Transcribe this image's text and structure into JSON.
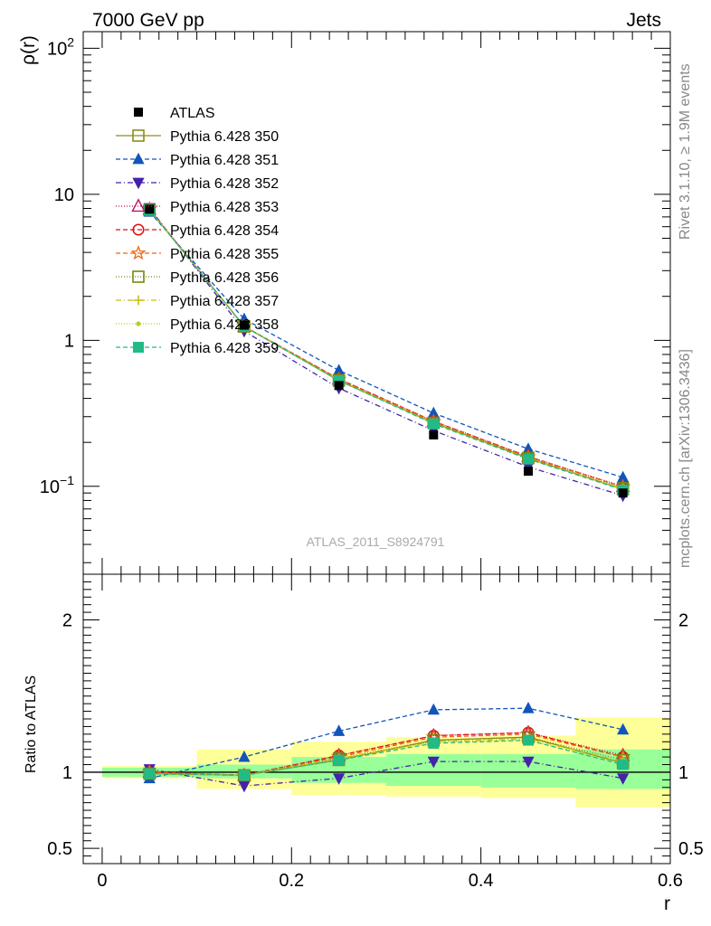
{
  "header": {
    "left": "7000 GeV pp",
    "right": "Jets"
  },
  "side": {
    "rivet": "Rivet 3.1.10, ≥ 1.9M events",
    "source": "mcplots.cern.ch [arXiv:1306.3436]"
  },
  "watermark": "ATLAS_2011_S8924791",
  "upper": {
    "ylabel": "ρ(r)"
  },
  "lower": {
    "ylabel": "Ratio to ATLAS"
  },
  "xlabel": "r",
  "colors": {
    "data": "#000000",
    "band_inner": "#99ff99",
    "band_outer": "#ffff99"
  },
  "chart_data": {
    "type": "line",
    "xlabel": "r",
    "ylabel_upper": "ρ(r)",
    "ylabel_lower": "Ratio to ATLAS",
    "x_range": [
      -0.02,
      0.6
    ],
    "x_ticks": [
      "0",
      "0.2",
      "0.4",
      "0.6"
    ],
    "upper_y_log": true,
    "upper_y_range": [
      0.025,
      130
    ],
    "upper_y_ticks": [
      {
        "value": 0.1,
        "label": "10",
        "exp": "−1"
      },
      {
        "value": 1,
        "label": "1",
        "exp": ""
      },
      {
        "value": 10,
        "label": "10",
        "exp": ""
      },
      {
        "value": 100,
        "label": "10",
        "exp": "2"
      }
    ],
    "lower_y_range": [
      0.4,
      2.3
    ],
    "lower_y_ticks": [
      "0.5",
      "1",
      "2"
    ],
    "x": [
      0.05,
      0.15,
      0.25,
      0.35,
      0.45,
      0.55
    ],
    "bin_edges": [
      0.0,
      0.1,
      0.2,
      0.3,
      0.4,
      0.5,
      0.6
    ],
    "data": {
      "name": "ATLAS",
      "values": [
        7.9,
        1.27,
        0.49,
        0.225,
        0.127,
        0.09
      ]
    },
    "bands": {
      "inner_lo": [
        0.97,
        0.96,
        0.93,
        0.91,
        0.9,
        0.89
      ],
      "inner_hi": [
        1.03,
        1.05,
        1.1,
        1.12,
        1.12,
        1.15
      ],
      "outer_lo": [
        0.96,
        0.89,
        0.85,
        0.84,
        0.83,
        0.77
      ],
      "outer_hi": [
        1.04,
        1.15,
        1.2,
        1.23,
        1.24,
        1.36
      ]
    },
    "series": [
      {
        "name": "Pythia 6.428 350",
        "color": "#8c8c1f",
        "marker": "square-open",
        "dash": "",
        "ratio": [
          0.99,
          0.98,
          1.08,
          1.21,
          1.23,
          1.06
        ]
      },
      {
        "name": "Pythia 6.428 351",
        "color": "#1155bb",
        "marker": "triangle-up",
        "dash": "5,3",
        "ratio": [
          0.96,
          1.1,
          1.27,
          1.41,
          1.42,
          1.28
        ]
      },
      {
        "name": "Pythia 6.428 352",
        "color": "#4422aa",
        "marker": "triangle-down",
        "dash": "6,3,1,3",
        "ratio": [
          1.02,
          0.91,
          0.96,
          1.07,
          1.07,
          0.96
        ]
      },
      {
        "name": "Pythia 6.428 353",
        "color": "#bb1166",
        "marker": "triangle-up-open",
        "dash": "1,2",
        "ratio": [
          1.0,
          0.98,
          1.11,
          1.24,
          1.26,
          1.11
        ]
      },
      {
        "name": "Pythia 6.428 354",
        "color": "#dd1111",
        "marker": "circle-open",
        "dash": "5,3",
        "ratio": [
          1.0,
          0.98,
          1.11,
          1.24,
          1.26,
          1.1
        ]
      },
      {
        "name": "Pythia 6.428 355",
        "color": "#ee6611",
        "marker": "star-open",
        "dash": "5,3",
        "ratio": [
          1.0,
          0.98,
          1.1,
          1.23,
          1.25,
          1.1
        ]
      },
      {
        "name": "Pythia 6.428 356",
        "color": "#778811",
        "marker": "square-open",
        "dash": "1,2",
        "ratio": [
          0.99,
          0.98,
          1.09,
          1.21,
          1.23,
          1.08
        ]
      },
      {
        "name": "Pythia 6.428 357",
        "color": "#ccbb11",
        "marker": "cross",
        "dash": "6,3,1,3",
        "ratio": [
          0.99,
          0.98,
          1.09,
          1.2,
          1.22,
          1.07
        ]
      },
      {
        "name": "Pythia 6.428 358",
        "color": "#bbcc22",
        "marker": "dot",
        "dash": "1,2",
        "ratio": [
          0.99,
          0.98,
          1.08,
          1.2,
          1.21,
          1.06
        ]
      },
      {
        "name": "Pythia 6.428 359",
        "color": "#22bb88",
        "marker": "square",
        "dash": "5,3",
        "ratio": [
          0.99,
          0.98,
          1.08,
          1.19,
          1.21,
          1.05
        ]
      }
    ]
  }
}
